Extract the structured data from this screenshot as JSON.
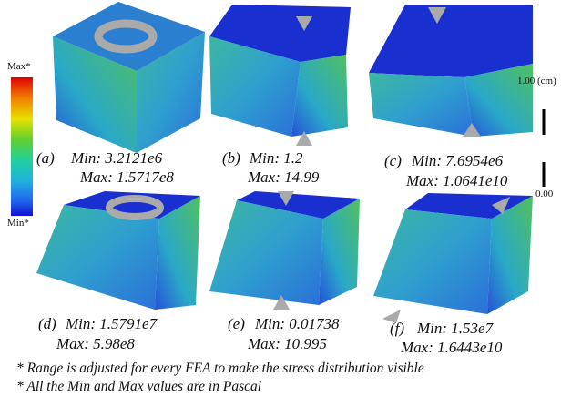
{
  "colorbar": {
    "max": "Max*",
    "min": "Min*"
  },
  "scale": {
    "top": "1.00 (cm)",
    "bottom": "0.00"
  },
  "panels": [
    {
      "label": "(a)",
      "min": "Min: 3.2121e6",
      "max": "Max: 1.5717e8"
    },
    {
      "label": "(b)",
      "min": "Min: 1.2",
      "max": "Max: 14.99"
    },
    {
      "label": "(c)",
      "min": "Min: 7.6954e6",
      "max": "Max: 1.0641e10"
    },
    {
      "label": "(d)",
      "min": "Min: 1.5791e7",
      "max": "Max: 5.98e8"
    },
    {
      "label": "(e)",
      "min": "Min: 0.01738",
      "max": "Max: 10.995"
    },
    {
      "label": "(f)",
      "min": "Min: 1.53e7",
      "max": "Max: 1.6443e10"
    }
  ],
  "notes": [
    "* Range is adjusted for every FEA to make the stress distribution visible",
    "* All the Min and Max values are in Pascal"
  ]
}
